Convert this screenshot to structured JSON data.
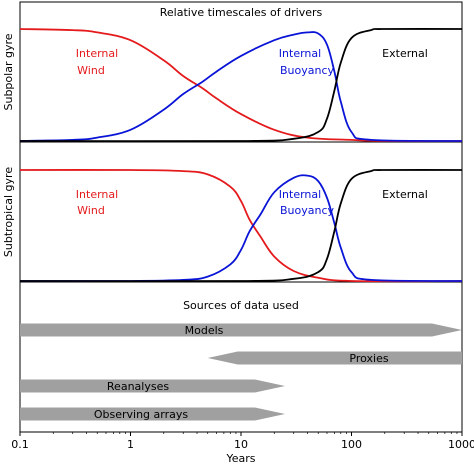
{
  "chart_data": {
    "type": "line",
    "title": "Relative timescales of drivers",
    "xlabel": "Years",
    "x_scale": "log",
    "xlim": [
      0.1,
      1000
    ],
    "x_ticks": [
      "0.1",
      "1",
      "10",
      "100",
      "1000"
    ],
    "panels": [
      {
        "ylabel": "Subpolar gyre",
        "ylim": [
          0,
          1
        ],
        "series": [
          {
            "name": "Internal Wind",
            "color": "#e41a1c",
            "x": [
              0.1,
              0.3,
              0.5,
              1,
              2,
              3,
              4.5,
              6,
              10,
              20,
              40,
              100,
              200,
              1000
            ],
            "y": [
              1.0,
              0.99,
              0.97,
              0.9,
              0.72,
              0.58,
              0.47,
              0.38,
              0.24,
              0.1,
              0.03,
              0.01,
              0.0,
              0.0
            ]
          },
          {
            "name": "Internal Buoyancy",
            "color": "#0a14d6",
            "x": [
              0.1,
              0.3,
              0.5,
              1,
              2,
              3,
              4.5,
              6,
              10,
              20,
              30,
              40,
              50,
              60,
              70,
              80,
              100,
              150,
              1000
            ],
            "y": [
              0.0,
              0.01,
              0.03,
              0.1,
              0.28,
              0.42,
              0.53,
              0.62,
              0.76,
              0.9,
              0.95,
              0.97,
              0.96,
              0.86,
              0.62,
              0.35,
              0.08,
              0.01,
              0.0
            ]
          },
          {
            "name": "External",
            "color": "#000000",
            "x": [
              0.1,
              10,
              30,
              50,
              60,
              70,
              80,
              100,
              150,
              200,
              1000
            ],
            "y": [
              0.0,
              0.0,
              0.02,
              0.08,
              0.2,
              0.45,
              0.7,
              0.92,
              0.99,
              1.0,
              1.0
            ]
          }
        ]
      },
      {
        "ylabel": "Subtropical gyre",
        "ylim": [
          0,
          1
        ],
        "series": [
          {
            "name": "Internal Wind",
            "color": "#e41a1c",
            "x": [
              0.1,
              1,
              3,
              5,
              8,
              10,
              12,
              15,
              20,
              30,
              50,
              100,
              1000
            ],
            "y": [
              1.0,
              1.0,
              0.99,
              0.96,
              0.85,
              0.72,
              0.55,
              0.4,
              0.22,
              0.09,
              0.03,
              0.0,
              0.0
            ]
          },
          {
            "name": "Internal Buoyancy",
            "color": "#0a14d6",
            "x": [
              0.1,
              1,
              3,
              5,
              8,
              10,
              12,
              15,
              20,
              30,
              40,
              50,
              60,
              70,
              80,
              100,
              150,
              1000
            ],
            "y": [
              0.0,
              0.0,
              0.01,
              0.04,
              0.15,
              0.28,
              0.45,
              0.6,
              0.8,
              0.93,
              0.95,
              0.9,
              0.75,
              0.52,
              0.3,
              0.08,
              0.01,
              0.0
            ]
          },
          {
            "name": "External",
            "color": "#000000",
            "x": [
              0.1,
              10,
              30,
              50,
              60,
              70,
              80,
              100,
              150,
              200,
              1000
            ],
            "y": [
              0.0,
              0.0,
              0.02,
              0.08,
              0.2,
              0.45,
              0.7,
              0.92,
              0.99,
              1.0,
              1.0
            ]
          }
        ]
      }
    ],
    "labels": {
      "internal": "Internal",
      "wind": "Wind",
      "buoyancy": "Buoyancy",
      "external": "External"
    },
    "sources": {
      "title": "Sources of data used",
      "bars": [
        {
          "label": "Models",
          "x_start": 0.1,
          "x_end": 1000,
          "direction": "right"
        },
        {
          "label": "Proxies",
          "x_start": 5,
          "x_end": 1000,
          "direction": "left"
        },
        {
          "label": "Reanalyses",
          "x_start": 0.1,
          "x_end": 25,
          "direction": "right"
        },
        {
          "label": "Observing arrays",
          "x_start": 0.1,
          "x_end": 25,
          "direction": "right"
        }
      ]
    },
    "colors": {
      "wind": "#e41a1c",
      "buoyancy": "#0a14d6",
      "external": "#000000",
      "bar_fill": "#a0a0a0"
    }
  }
}
